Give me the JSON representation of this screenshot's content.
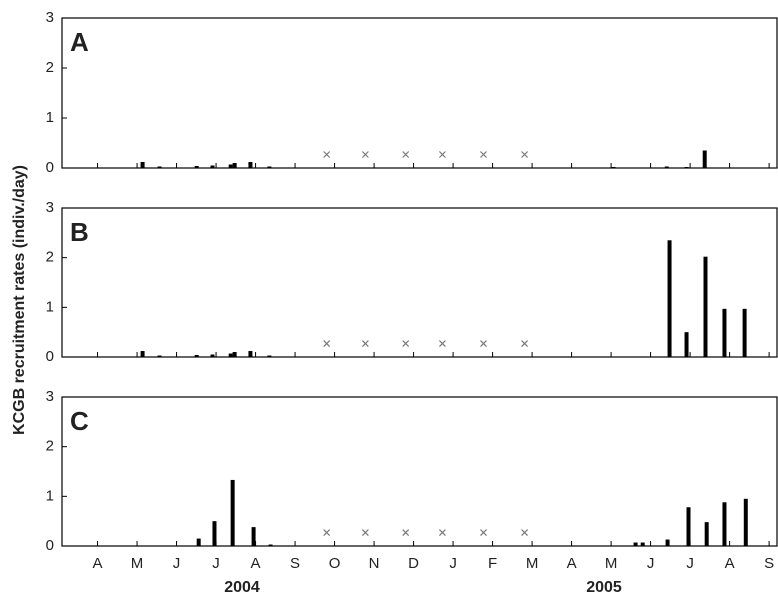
{
  "ylabel": "KCGB recruitment rates (indiv./day)",
  "year_labels": [
    "2004",
    "2005"
  ],
  "chart_data": [
    {
      "type": "bar",
      "title": "A",
      "color": "#000000",
      "x": [
        2.14,
        2.57,
        3.51,
        3.91,
        4.37,
        4.47,
        4.87,
        5.35,
        14.06,
        15.41,
        15.91,
        16.37
      ],
      "values": [
        0.12,
        0.03,
        0.04,
        0.05,
        0.07,
        0.1,
        0.12,
        0.03,
        0.02,
        0.03,
        0.02,
        0.35
      ],
      "markers_x": [
        6.8,
        7.78,
        8.8,
        9.73,
        10.77,
        11.81
      ],
      "markers_y": [
        0.27,
        0.27,
        0.27,
        0.27,
        0.27,
        0.27
      ],
      "xlim": [
        0.1,
        18.2
      ],
      "xticks": [
        1,
        2,
        3,
        4,
        5,
        6,
        7,
        8,
        9,
        10,
        11,
        12,
        13,
        14,
        15,
        16,
        17,
        18
      ],
      "ylim": [
        0,
        3
      ],
      "yticks": [
        0,
        1,
        2,
        3
      ]
    },
    {
      "type": "bar",
      "title": "B",
      "color": "#000000",
      "x": [
        2.14,
        2.57,
        3.51,
        3.91,
        4.37,
        4.47,
        4.87,
        5.35,
        13.63,
        15.48,
        15.91,
        16.39,
        16.87,
        17.38
      ],
      "values": [
        0.12,
        0.03,
        0.04,
        0.05,
        0.07,
        0.1,
        0.12,
        0.03,
        0.01,
        2.35,
        0.5,
        2.02,
        0.97,
        0.97
      ],
      "markers_x": [
        6.8,
        7.78,
        8.8,
        9.73,
        10.77,
        11.81
      ],
      "markers_y": [
        0.27,
        0.27,
        0.27,
        0.27,
        0.27,
        0.27
      ],
      "xlim": [
        0.1,
        18.2
      ],
      "xticks": [
        1,
        2,
        3,
        4,
        5,
        6,
        7,
        8,
        9,
        10,
        11,
        12,
        13,
        14,
        15,
        16,
        17,
        18
      ],
      "ylim": [
        0,
        3
      ],
      "yticks": [
        0,
        1,
        2,
        3
      ]
    },
    {
      "type": "bar",
      "title": "C",
      "color": "#000000",
      "x": [
        3.56,
        3.96,
        4.42,
        4.95,
        5.38,
        14.62,
        14.8,
        15.43,
        15.96,
        16.42,
        16.87,
        17.41
      ],
      "values": [
        0.15,
        0.5,
        1.33,
        0.38,
        0.03,
        0.07,
        0.07,
        0.13,
        0.78,
        0.48,
        0.88,
        0.95
      ],
      "markers_x": [
        6.8,
        7.78,
        8.8,
        9.73,
        10.77,
        11.81
      ],
      "markers_y": [
        0.27,
        0.27,
        0.27,
        0.27,
        0.27,
        0.27
      ],
      "xlim": [
        0.1,
        18.2
      ],
      "xticks": [
        {
          "value": 1,
          "label": "A"
        },
        {
          "value": 2,
          "label": "M"
        },
        {
          "value": 3,
          "label": "J"
        },
        {
          "value": 4,
          "label": "J"
        },
        {
          "value": 5,
          "label": "A"
        },
        {
          "value": 6,
          "label": "S"
        },
        {
          "value": 7,
          "label": "O"
        },
        {
          "value": 8,
          "label": "N"
        },
        {
          "value": 9,
          "label": "D"
        },
        {
          "value": 10,
          "label": "J"
        },
        {
          "value": 11,
          "label": "F"
        },
        {
          "value": 12,
          "label": "M"
        },
        {
          "value": 13,
          "label": "A"
        },
        {
          "value": 14,
          "label": "M"
        },
        {
          "value": 15,
          "label": "J"
        },
        {
          "value": 16,
          "label": "J"
        },
        {
          "value": 17,
          "label": "A"
        },
        {
          "value": 18,
          "label": "S"
        }
      ],
      "ylim": [
        0,
        3
      ],
      "yticks": [
        0,
        1,
        2,
        3
      ]
    }
  ]
}
